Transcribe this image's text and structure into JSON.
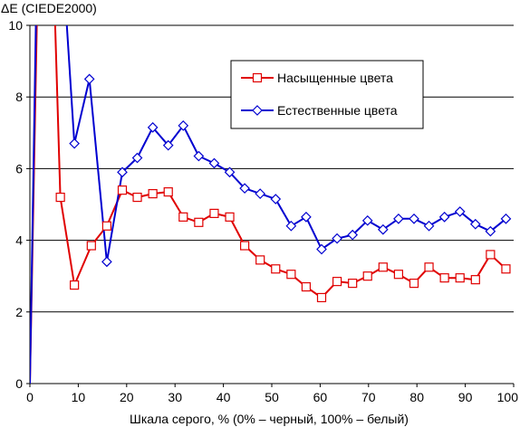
{
  "chart_data": {
    "type": "line",
    "title": "",
    "ylabel": "ΔE (CIEDE2000)",
    "xlabel": "Шкала серого, % (0% – черный, 100% – белый)",
    "xlim": [
      0,
      100
    ],
    "ylim": [
      0,
      10
    ],
    "x_ticks": [
      0,
      10,
      20,
      30,
      40,
      50,
      60,
      70,
      80,
      90,
      100
    ],
    "y_ticks": [
      0,
      2,
      4,
      6,
      8,
      10
    ],
    "grid": "horizontal",
    "legend_position": "top-right",
    "series": [
      {
        "name": "Насыщенные цвета",
        "color": "#e00000",
        "marker": "square",
        "points": [
          [
            0,
            0
          ],
          [
            1.5,
            10.5
          ],
          [
            3,
            16
          ],
          [
            5,
            11
          ],
          [
            6.3,
            5.2
          ],
          [
            9.2,
            2.75
          ],
          [
            12.7,
            3.85
          ],
          [
            15.9,
            4.4
          ],
          [
            19.1,
            5.4
          ],
          [
            22.2,
            5.2
          ],
          [
            25.4,
            5.3
          ],
          [
            28.6,
            5.35
          ],
          [
            31.7,
            4.65
          ],
          [
            34.9,
            4.5
          ],
          [
            38.1,
            4.75
          ],
          [
            41.3,
            4.65
          ],
          [
            44.4,
            3.85
          ],
          [
            47.6,
            3.45
          ],
          [
            50.8,
            3.2
          ],
          [
            54.0,
            3.05
          ],
          [
            57.1,
            2.7
          ],
          [
            60.3,
            2.4
          ],
          [
            63.5,
            2.85
          ],
          [
            66.7,
            2.8
          ],
          [
            69.8,
            3.0
          ],
          [
            73.0,
            3.25
          ],
          [
            76.2,
            3.05
          ],
          [
            79.4,
            2.8
          ],
          [
            82.5,
            3.25
          ],
          [
            85.7,
            2.95
          ],
          [
            88.9,
            2.95
          ],
          [
            92.1,
            2.9
          ],
          [
            95.2,
            3.6
          ],
          [
            98.4,
            3.2
          ]
        ]
      },
      {
        "name": "Естественные цвета",
        "color": "#0000d0",
        "marker": "diamond",
        "points": [
          [
            0,
            0
          ],
          [
            0.8,
            6.5
          ],
          [
            1.3,
            10.5
          ],
          [
            3,
            14
          ],
          [
            6,
            13
          ],
          [
            7.4,
            10.5
          ],
          [
            9.2,
            6.7
          ],
          [
            12.3,
            8.5
          ],
          [
            15.9,
            3.4
          ],
          [
            19.1,
            5.9
          ],
          [
            22.2,
            6.3
          ],
          [
            25.4,
            7.15
          ],
          [
            28.6,
            6.65
          ],
          [
            31.7,
            7.2
          ],
          [
            34.9,
            6.35
          ],
          [
            38.1,
            6.15
          ],
          [
            41.3,
            5.9
          ],
          [
            44.4,
            5.45
          ],
          [
            47.6,
            5.3
          ],
          [
            50.8,
            5.15
          ],
          [
            54.0,
            4.4
          ],
          [
            57.1,
            4.65
          ],
          [
            60.3,
            3.75
          ],
          [
            63.5,
            4.05
          ],
          [
            66.7,
            4.15
          ],
          [
            69.8,
            4.55
          ],
          [
            73.0,
            4.3
          ],
          [
            76.2,
            4.6
          ],
          [
            79.4,
            4.6
          ],
          [
            82.5,
            4.4
          ],
          [
            85.7,
            4.65
          ],
          [
            88.9,
            4.8
          ],
          [
            92.1,
            4.45
          ],
          [
            95.2,
            4.25
          ],
          [
            98.4,
            4.6
          ]
        ]
      }
    ]
  }
}
